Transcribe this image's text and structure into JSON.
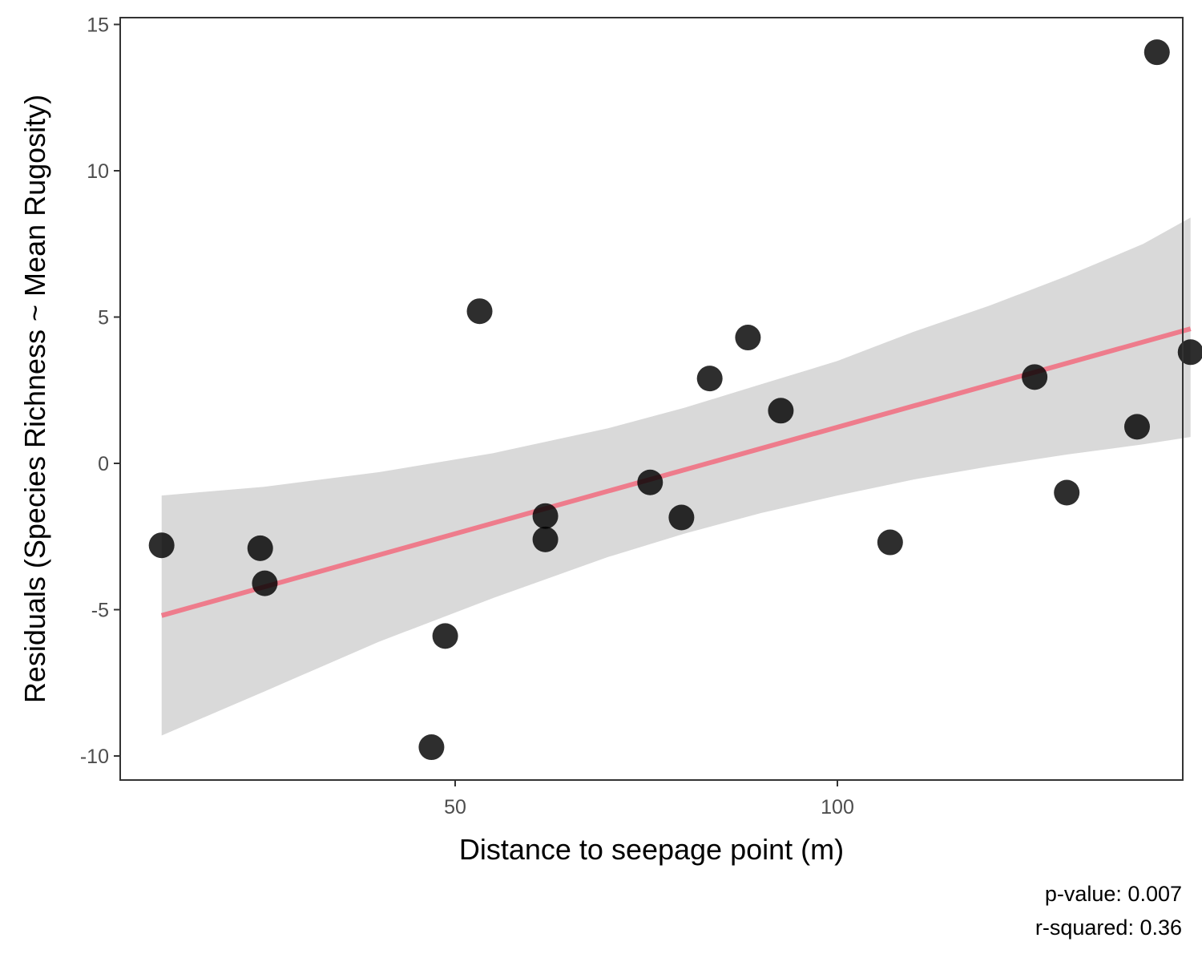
{
  "chart_data": {
    "type": "scatter",
    "xlabel": "Distance to seepage point (m)",
    "ylabel": "Residuals (Species Richness ~ Mean Rugosity)",
    "xlim": [
      5.5,
      145
    ],
    "ylim": [
      -10.8,
      15.2
    ],
    "x_ticks": [
      50,
      100
    ],
    "x_tick_labels": [
      "50",
      "100"
    ],
    "y_ticks": [
      -10,
      -5,
      0,
      5,
      10,
      15
    ],
    "y_tick_labels": [
      "-10",
      "-5",
      "0",
      "5",
      "10",
      "15"
    ],
    "grid": false,
    "points": [
      {
        "x": 11.6,
        "y": -2.8
      },
      {
        "x": 24.5,
        "y": -2.9
      },
      {
        "x": 25.1,
        "y": -4.1
      },
      {
        "x": 46.9,
        "y": -9.7
      },
      {
        "x": 48.7,
        "y": -5.9
      },
      {
        "x": 53.2,
        "y": 5.2
      },
      {
        "x": 61.8,
        "y": -1.8
      },
      {
        "x": 61.8,
        "y": -2.6
      },
      {
        "x": 75.5,
        "y": -0.65
      },
      {
        "x": 79.6,
        "y": -1.85
      },
      {
        "x": 83.3,
        "y": 2.9
      },
      {
        "x": 88.3,
        "y": 4.3
      },
      {
        "x": 92.6,
        "y": 1.8
      },
      {
        "x": 106.9,
        "y": -2.7
      },
      {
        "x": 125.8,
        "y": 2.95
      },
      {
        "x": 130.0,
        "y": -1.0
      },
      {
        "x": 139.2,
        "y": 1.25
      },
      {
        "x": 141.8,
        "y": 14.05
      },
      {
        "x": 146.2,
        "y": 3.8
      }
    ],
    "fit_line": {
      "x": [
        11.6,
        146.2
      ],
      "y": [
        -5.2,
        4.6
      ],
      "color": "#ee7c8c"
    },
    "confidence_band": {
      "x": [
        11.6,
        25,
        40,
        55,
        70,
        80,
        90,
        100,
        110,
        120,
        130,
        140,
        146.2
      ],
      "lower": [
        -9.3,
        -7.8,
        -6.1,
        -4.6,
        -3.2,
        -2.4,
        -1.7,
        -1.1,
        -0.55,
        -0.1,
        0.3,
        0.65,
        0.9
      ],
      "upper": [
        -1.1,
        -0.8,
        -0.3,
        0.35,
        1.2,
        1.9,
        2.7,
        3.5,
        4.5,
        5.4,
        6.4,
        7.5,
        8.4
      ],
      "color": "#d9d9d9"
    },
    "point_color": "#000000",
    "annotations": [
      "p-value: 0.007",
      "r-squared: 0.36"
    ]
  }
}
